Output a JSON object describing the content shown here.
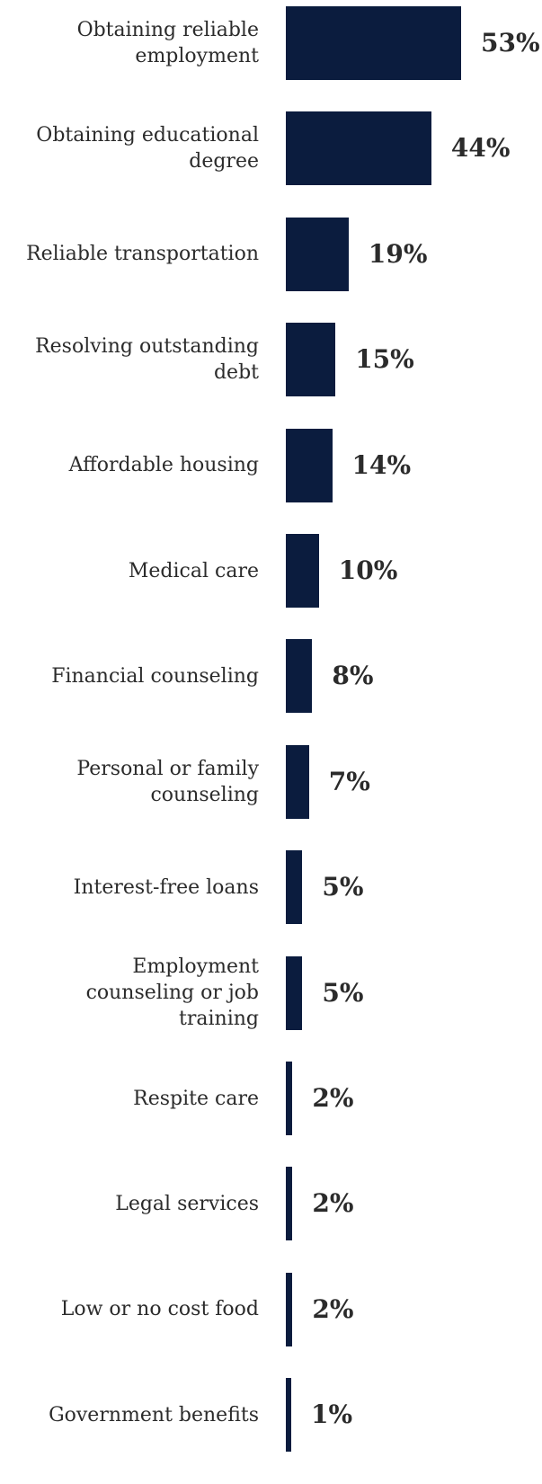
{
  "chart_data": {
    "type": "bar",
    "orientation": "horizontal",
    "bar_color": "#0b1c3e",
    "text_color": "#2b2b2b",
    "categories": [
      "Obtaining reliable employment",
      "Obtaining educational degree",
      "Reliable transportation",
      "Resolving outstanding debt",
      "Affordable housing",
      "Medical care",
      "Financial counseling",
      "Personal or family counseling",
      "Interest-free loans",
      "Employment counseling or job training",
      "Respite care",
      "Legal services",
      "Low or no cost food",
      "Government benefits"
    ],
    "values": [
      53,
      44,
      19,
      15,
      14,
      10,
      8,
      7,
      5,
      5,
      2,
      2,
      2,
      1
    ],
    "value_labels": [
      "53%",
      "44%",
      "19%",
      "15%",
      "14%",
      "10%",
      "8%",
      "7%",
      "5%",
      "5%",
      "2%",
      "2%",
      "2%",
      "1%"
    ],
    "xlim": [
      0,
      53
    ],
    "grid": false,
    "title": "",
    "xlabel": "",
    "ylabel": ""
  }
}
